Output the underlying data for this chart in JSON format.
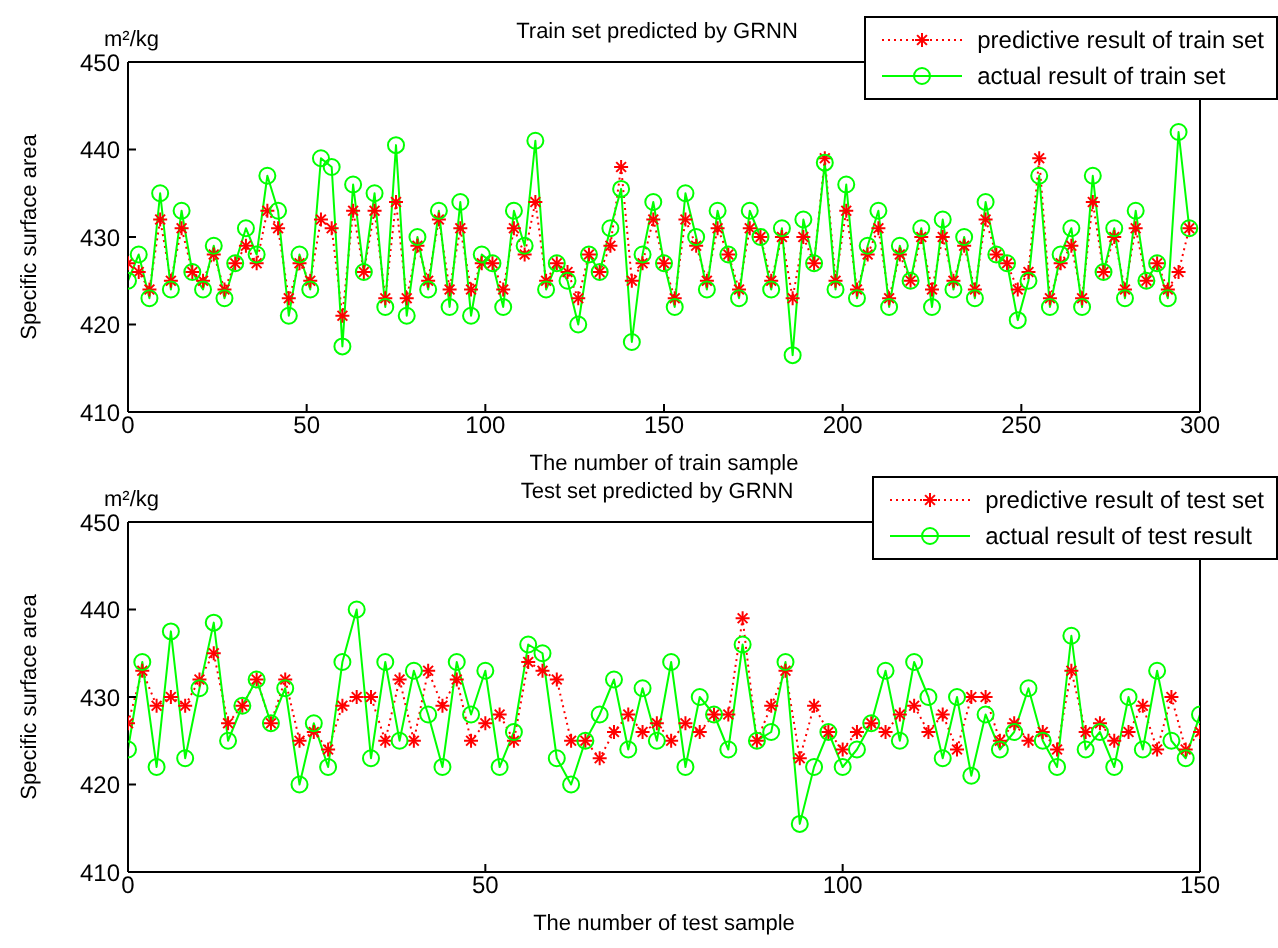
{
  "chart_data": [
    {
      "type": "line",
      "title": "Train set predicted by GRNN",
      "xlabel": "The number of train sample",
      "ylabel": "Specific surface area",
      "annotations": [
        "m²/kg"
      ],
      "xlim": [
        0,
        300
      ],
      "xticks": [
        0,
        50,
        100,
        150,
        200,
        250,
        300
      ],
      "ylim": [
        410,
        450
      ],
      "yticks": [
        410,
        420,
        430,
        440,
        450
      ],
      "grid": false,
      "legend": "top right",
      "series": [
        {
          "name": "predictive result of train set",
          "color": "#ff0000",
          "marker": "cross",
          "line_style": "dotted",
          "x": [
            0,
            3,
            6,
            9,
            12,
            15,
            18,
            21,
            24,
            27,
            30,
            33,
            36,
            39,
            42,
            45,
            48,
            51,
            54,
            57,
            60,
            63,
            66,
            69,
            72,
            75,
            78,
            81,
            84,
            87,
            90,
            93,
            96,
            99,
            102,
            105,
            108,
            111,
            114,
            117,
            120,
            123,
            126,
            129,
            132,
            135,
            138,
            141,
            144,
            147,
            150,
            153,
            156,
            159,
            162,
            165,
            168,
            171,
            174,
            177,
            180,
            183,
            186,
            189,
            192,
            195,
            198,
            201,
            204,
            207,
            210,
            213,
            216,
            219,
            222,
            225,
            228,
            231,
            234,
            237,
            240,
            243,
            246,
            249,
            252,
            255,
            258,
            261,
            264,
            267,
            270,
            273,
            276,
            279,
            282,
            285,
            288,
            291,
            294,
            297
          ],
          "values": [
            427,
            426,
            424,
            432,
            425,
            431,
            426,
            425,
            428,
            424,
            427,
            429,
            427,
            433,
            431,
            423,
            427,
            425,
            432,
            431,
            421,
            433,
            426,
            433,
            423,
            434,
            423,
            429,
            425,
            432,
            424,
            431,
            424,
            427,
            427,
            424,
            431,
            428,
            434,
            425,
            427,
            426,
            423,
            428,
            426,
            429,
            438,
            425,
            427,
            432,
            427,
            423,
            432,
            429,
            425,
            431,
            428,
            424,
            431,
            430,
            425,
            430,
            423,
            430,
            427,
            439,
            425,
            433,
            424,
            428,
            431,
            423,
            428,
            425,
            430,
            424,
            430,
            425,
            429,
            424,
            432,
            428,
            427,
            424,
            426,
            439,
            423,
            427,
            429,
            423,
            434,
            426,
            430,
            424,
            431,
            425,
            427,
            424,
            426,
            431
          ]
        },
        {
          "name": "actual result of train set",
          "color": "#00ff00",
          "marker": "circle",
          "line_style": "solid",
          "x": [
            0,
            3,
            6,
            9,
            12,
            15,
            18,
            21,
            24,
            27,
            30,
            33,
            36,
            39,
            42,
            45,
            48,
            51,
            54,
            57,
            60,
            63,
            66,
            69,
            72,
            75,
            78,
            81,
            84,
            87,
            90,
            93,
            96,
            99,
            102,
            105,
            108,
            111,
            114,
            117,
            120,
            123,
            126,
            129,
            132,
            135,
            138,
            141,
            144,
            147,
            150,
            153,
            156,
            159,
            162,
            165,
            168,
            171,
            174,
            177,
            180,
            183,
            186,
            189,
            192,
            195,
            198,
            201,
            204,
            207,
            210,
            213,
            216,
            219,
            222,
            225,
            228,
            231,
            234,
            237,
            240,
            243,
            246,
            249,
            252,
            255,
            258,
            261,
            264,
            267,
            270,
            273,
            276,
            279,
            282,
            285,
            288,
            291,
            294,
            297
          ],
          "values": [
            425,
            428,
            423,
            435,
            424,
            433,
            426,
            424,
            429,
            423,
            427,
            431,
            428,
            437,
            433,
            421,
            428,
            424,
            439,
            438,
            417.5,
            436,
            426,
            435,
            422,
            440.5,
            421,
            430,
            424,
            433,
            422,
            434,
            421,
            428,
            427,
            422,
            433,
            429,
            441,
            424,
            427,
            425,
            420,
            428,
            426,
            431,
            435.5,
            418,
            428,
            434,
            427,
            422,
            435,
            430,
            424,
            433,
            428,
            423,
            433,
            430,
            424,
            431,
            416.5,
            432,
            427,
            438.5,
            424,
            436,
            423,
            429,
            433,
            422,
            429,
            425,
            431,
            422,
            432,
            424,
            430,
            423,
            434,
            428,
            427,
            420.5,
            425,
            437,
            422,
            428,
            431,
            422,
            437,
            426,
            431,
            423,
            433,
            425,
            427,
            423,
            442,
            431
          ]
        }
      ]
    },
    {
      "type": "line",
      "title": "Test set predicted by GRNN",
      "xlabel": "The number of test sample",
      "ylabel": "Specific surface area",
      "annotations": [
        "m²/kg"
      ],
      "xlim": [
        0,
        150
      ],
      "xticks": [
        0,
        50,
        100,
        150
      ],
      "ylim": [
        410,
        450
      ],
      "yticks": [
        410,
        420,
        430,
        440,
        450
      ],
      "grid": false,
      "legend": "top right",
      "series": [
        {
          "name": "predictive result of test set",
          "color": "#ff0000",
          "marker": "cross",
          "line_style": "dotted",
          "x": [
            0,
            2,
            4,
            6,
            8,
            10,
            12,
            14,
            16,
            18,
            20,
            22,
            24,
            26,
            28,
            30,
            32,
            34,
            36,
            38,
            40,
            42,
            44,
            46,
            48,
            50,
            52,
            54,
            56,
            58,
            60,
            62,
            64,
            66,
            68,
            70,
            72,
            74,
            76,
            78,
            80,
            82,
            84,
            86,
            88,
            90,
            92,
            94,
            96,
            98,
            100,
            102,
            104,
            106,
            108,
            110,
            112,
            114,
            116,
            118,
            120,
            122,
            124,
            126,
            128,
            130,
            132,
            134,
            136,
            138,
            140,
            142,
            144,
            146,
            148,
            150
          ],
          "values": [
            427,
            433,
            429,
            430,
            429,
            432,
            435,
            427,
            429,
            432,
            427,
            432,
            425,
            426,
            424,
            429,
            430,
            430,
            425,
            432,
            425,
            433,
            429,
            432,
            425,
            427,
            428,
            425,
            434,
            433,
            432,
            425,
            425,
            423,
            426,
            428,
            426,
            427,
            425,
            427,
            426,
            428,
            428,
            439,
            425,
            429,
            433,
            423,
            429,
            426,
            424,
            426,
            427,
            426,
            428,
            429,
            426,
            428,
            424,
            430,
            430,
            425,
            427,
            425,
            426,
            424,
            433,
            426,
            427,
            425,
            426,
            429,
            424,
            430,
            424,
            426
          ]
        },
        {
          "name": "actual result of test result",
          "color": "#00ff00",
          "marker": "circle",
          "line_style": "solid",
          "x": [
            0,
            2,
            4,
            6,
            8,
            10,
            12,
            14,
            16,
            18,
            20,
            22,
            24,
            26,
            28,
            30,
            32,
            34,
            36,
            38,
            40,
            42,
            44,
            46,
            48,
            50,
            52,
            54,
            56,
            58,
            60,
            62,
            64,
            66,
            68,
            70,
            72,
            74,
            76,
            78,
            80,
            82,
            84,
            86,
            88,
            90,
            92,
            94,
            96,
            98,
            100,
            102,
            104,
            106,
            108,
            110,
            112,
            114,
            116,
            118,
            120,
            122,
            124,
            126,
            128,
            130,
            132,
            134,
            136,
            138,
            140,
            142,
            144,
            146,
            148,
            150
          ],
          "values": [
            424,
            434,
            422,
            437.5,
            423,
            431,
            438.5,
            425,
            429,
            432,
            427,
            431,
            420,
            427,
            422,
            434,
            440,
            423,
            434,
            425,
            433,
            428,
            422,
            434,
            428,
            433,
            422,
            426,
            436,
            435,
            423,
            420,
            425,
            428,
            432,
            424,
            431,
            425,
            434,
            422,
            430,
            428,
            424,
            436,
            425,
            426,
            434,
            415.5,
            422,
            426,
            422,
            424,
            427,
            433,
            425,
            434,
            430,
            423,
            430,
            421,
            428,
            424,
            426,
            431,
            425,
            422,
            437,
            424,
            426,
            422,
            430,
            424,
            433,
            425,
            423,
            428
          ]
        }
      ]
    }
  ]
}
